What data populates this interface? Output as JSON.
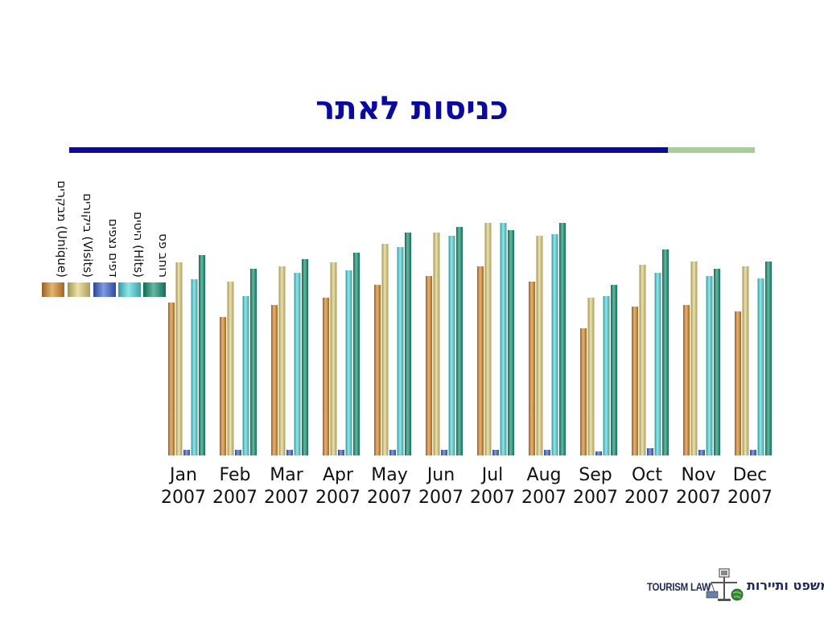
{
  "slide": {
    "title": "כניסות לאתר",
    "logo_text_en": "TOURISM LAW",
    "logo_text_he": "משפט ותיירות"
  },
  "colors": {
    "title": "#0a0a9c",
    "rule_main": "#0a0a9c",
    "rule_accent": "#a6cf98"
  },
  "chart_data": {
    "type": "bar",
    "categories": [
      "Jan 2007",
      "Feb 2007",
      "Mar 2007",
      "Apr 2007",
      "May 2007",
      "Jun 2007",
      "Jul 2007",
      "Aug 2007",
      "Sep 2007",
      "Oct 2007",
      "Nov 2007",
      "Dec 2007"
    ],
    "series": [
      {
        "name": "מבקרים (Unique)",
        "color": "#d98a2b",
        "values": [
          190,
          172,
          187,
          196,
          212,
          223,
          235,
          216,
          158,
          185,
          187,
          179
        ]
      },
      {
        "name": "ביקורים (Visits)",
        "color": "#e3d27a",
        "values": [
          240,
          216,
          235,
          240,
          263,
          277,
          289,
          273,
          196,
          237,
          241,
          235
        ]
      },
      {
        "name": "דפים נצפים",
        "color": "#3a63d6",
        "values": [
          7,
          7,
          7,
          7,
          7,
          7,
          7,
          7,
          5,
          9,
          7,
          7
        ]
      },
      {
        "name": "היטים (Hits)",
        "color": "#52d8e0",
        "values": [
          219,
          198,
          227,
          230,
          259,
          273,
          289,
          275,
          198,
          227,
          223,
          220
        ]
      },
      {
        "name": "רוחב פס",
        "color": "#139373",
        "values": [
          249,
          232,
          244,
          252,
          277,
          284,
          280,
          289,
          212,
          256,
          232,
          241
        ]
      }
    ],
    "legend_position": "left",
    "grid": false
  }
}
